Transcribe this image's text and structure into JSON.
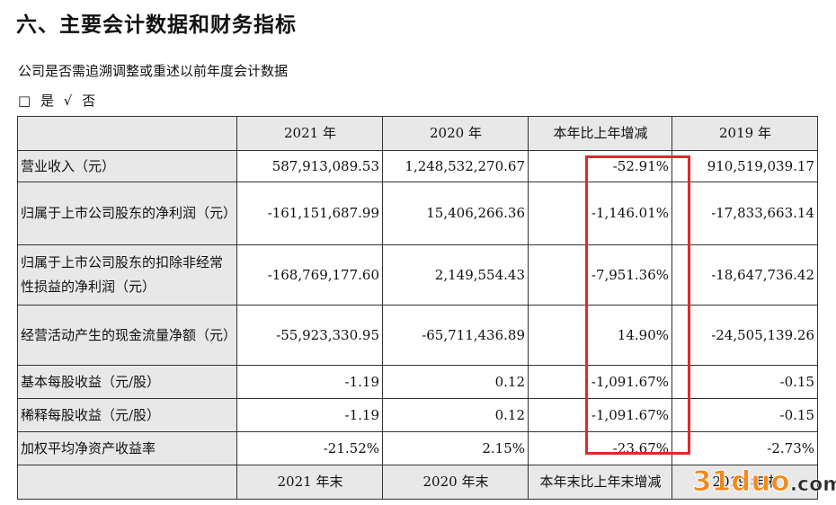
{
  "heading": "六、主要会计数据和财务指标",
  "subtitle": "公司是否需追溯调整或重述以前年度会计数据",
  "options": {
    "box": "□",
    "yes": "是",
    "check": "√",
    "no": "否"
  },
  "table": {
    "header": [
      "",
      "2021 年",
      "2020 年",
      "本年比上年增减",
      "2019 年"
    ],
    "rows": [
      {
        "label": "营业收入（元）",
        "values": [
          "587,913,089.53",
          "1,248,532,270.67",
          "-52.91%",
          "910,519,039.17"
        ]
      },
      {
        "label": "归属于上市公司股东的净利润（元）",
        "values": [
          "-161,151,687.99",
          "15,406,266.36",
          "-1,146.01%",
          "-17,833,663.14"
        ]
      },
      {
        "label": "归属于上市公司股东的扣除非经常性损益的净利润（元）",
        "values": [
          "-168,769,177.60",
          "2,149,554.43",
          "-7,951.36%",
          "-18,647,736.42"
        ]
      },
      {
        "label": "经营活动产生的现金流量净额（元）",
        "values": [
          "-55,923,330.95",
          "-65,711,436.89",
          "14.90%",
          "-24,505,139.26"
        ]
      },
      {
        "label": "基本每股收益（元/股）",
        "values": [
          "-1.19",
          "0.12",
          "-1,091.67%",
          "-0.15"
        ]
      },
      {
        "label": "稀释每股收益（元/股）",
        "values": [
          "-1.19",
          "0.12",
          "-1,091.67%",
          "-0.15"
        ]
      },
      {
        "label": "加权平均净资产收益率",
        "values": [
          "-21.52%",
          "2.15%",
          "-23.67%",
          "-2.73%"
        ]
      }
    ],
    "footer": [
      "",
      "2021 年末",
      "2020 年末",
      "本年末比上年末增减",
      "2019 年末"
    ]
  },
  "highlight_color": "#e5262d",
  "watermark": {
    "part1": "31duo",
    "part2": ".com"
  }
}
